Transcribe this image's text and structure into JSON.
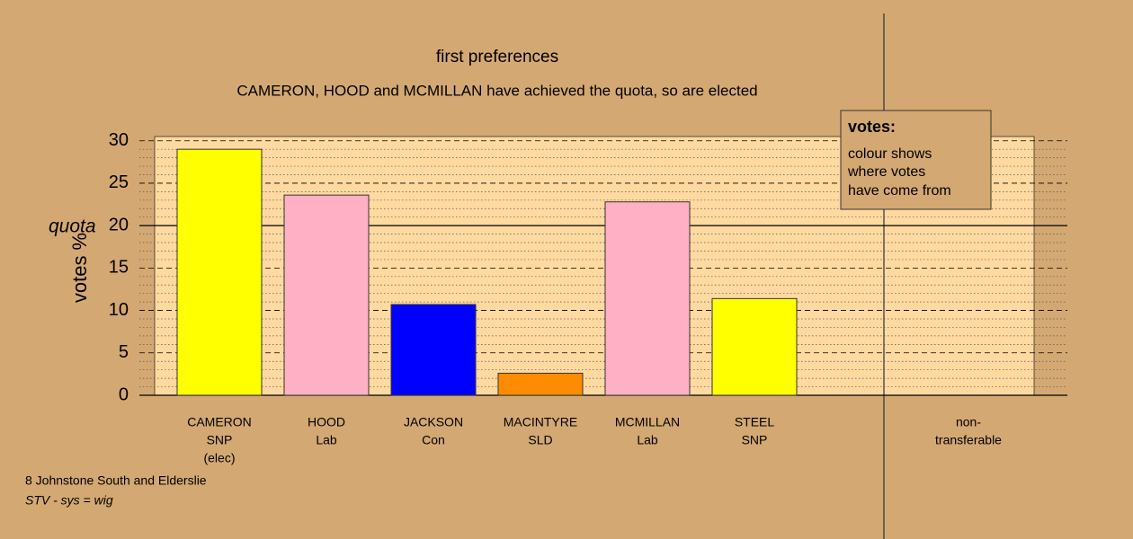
{
  "chart_data": {
    "type": "bar",
    "title": "first preferences",
    "subtitle": "CAMERON, HOOD and MCMILLAN have achieved the quota, so are elected",
    "ylabel": "votes %",
    "categories": [
      [
        "CAMERON",
        "SNP",
        "(elec)"
      ],
      [
        "HOOD",
        "Lab"
      ],
      [
        "JACKSON",
        "Con"
      ],
      [
        "MACINTYRE",
        "SLD"
      ],
      [
        "MCMILLAN",
        "Lab"
      ],
      [
        "STEEL",
        "SNP"
      ]
    ],
    "values": [
      29.0,
      23.6,
      10.7,
      2.6,
      22.8,
      11.4
    ],
    "colors": [
      "#ffff00",
      "#ffb0c4",
      "#0000ff",
      "#ff8c00",
      "#ffb0c4",
      "#ffff00"
    ],
    "extra_category": [
      "non-",
      "transferable"
    ],
    "ylim": [
      0,
      30.5
    ],
    "yticks": [
      0,
      5,
      10,
      15,
      20,
      25,
      30
    ],
    "minor_yticks": [
      1,
      2,
      3,
      4,
      6,
      7,
      8,
      9,
      11,
      12,
      13,
      14,
      16,
      17,
      18,
      19,
      21,
      22,
      23,
      24,
      26,
      27,
      28,
      29
    ],
    "quota": 20,
    "quota_label": "quota",
    "legend": {
      "title": "votes:",
      "lines": [
        "colour shows",
        "where votes",
        "have come from"
      ]
    },
    "footer": [
      "8 Johnstone South and Elderslie",
      "STV - sys = wig"
    ]
  }
}
